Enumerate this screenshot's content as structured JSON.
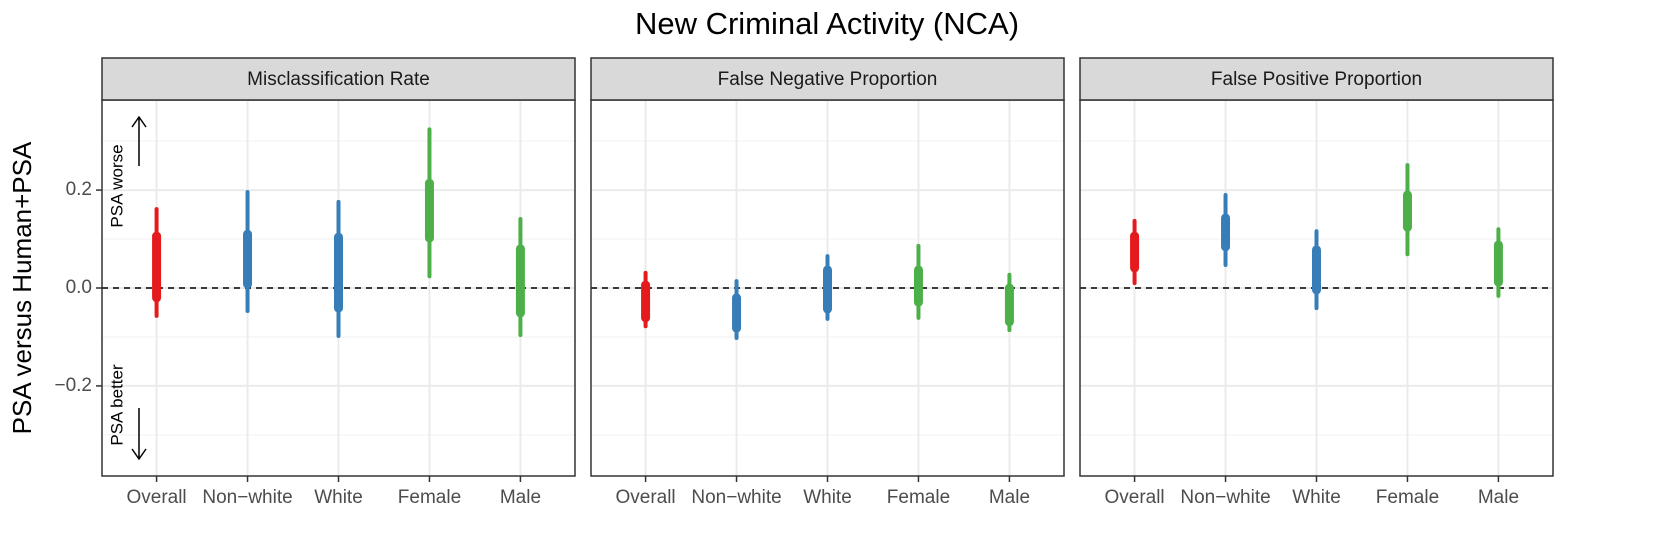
{
  "figure": {
    "title": "New Criminal Activity (NCA)",
    "y_label": "PSA versus Human+PSA",
    "annotations": [
      "PSA worse",
      "PSA better"
    ],
    "ylim": [
      -0.384,
      0.384
    ],
    "yticks": [
      {
        "value": -0.2,
        "label": "−0.2"
      },
      {
        "value": 0,
        "label": "0.0"
      },
      0.2
    ],
    "grid": true,
    "reference_line": 0
  },
  "chart_data": [
    {
      "type": "interval",
      "title": "Misclassification Rate",
      "categories": [
        "Overall",
        "Non−white",
        "White",
        "Female",
        "Male"
      ],
      "colors": [
        "#e41a1c",
        "#377eb8",
        "#377eb8",
        "#4daf4a",
        "#4daf4a"
      ],
      "outer_low": [
        -0.057,
        -0.047,
        -0.098,
        0.024,
        -0.096
      ],
      "outer_high": [
        0.161,
        0.196,
        0.176,
        0.324,
        0.141
      ],
      "inner_low": [
        -0.02,
        0.008,
        -0.041,
        0.102,
        -0.051
      ],
      "inner_high": [
        0.106,
        0.11,
        0.104,
        0.214,
        0.08
      ]
    },
    {
      "type": "interval",
      "title": "False Negative Proportion",
      "categories": [
        "Overall",
        "Non−white",
        "White",
        "Female",
        "Male"
      ],
      "colors": [
        "#e41a1c",
        "#377eb8",
        "#377eb8",
        "#4daf4a",
        "#4daf4a"
      ],
      "outer_low": [
        -0.078,
        -0.102,
        -0.063,
        -0.061,
        -0.086
      ],
      "outer_high": [
        0.031,
        0.014,
        0.065,
        0.086,
        0.027
      ],
      "inner_low": [
        -0.061,
        -0.082,
        -0.043,
        -0.029,
        -0.069
      ],
      "inner_high": [
        0.006,
        -0.02,
        0.037,
        0.037,
        0
      ]
    },
    {
      "type": "interval",
      "title": "False Positive Proportion",
      "categories": [
        "Overall",
        "Non−white",
        "White",
        "Female",
        "Male"
      ],
      "colors": [
        "#e41a1c",
        "#377eb8",
        "#377eb8",
        "#4daf4a",
        "#4daf4a"
      ],
      "outer_low": [
        0.01,
        0.047,
        -0.041,
        0.069,
        -0.016
      ],
      "outer_high": [
        0.137,
        0.19,
        0.116,
        0.251,
        0.12
      ],
      "inner_low": [
        0.041,
        0.084,
        -0.004,
        0.124,
        0.012
      ],
      "inner_high": [
        0.106,
        0.143,
        0.078,
        0.19,
        0.088
      ]
    }
  ]
}
